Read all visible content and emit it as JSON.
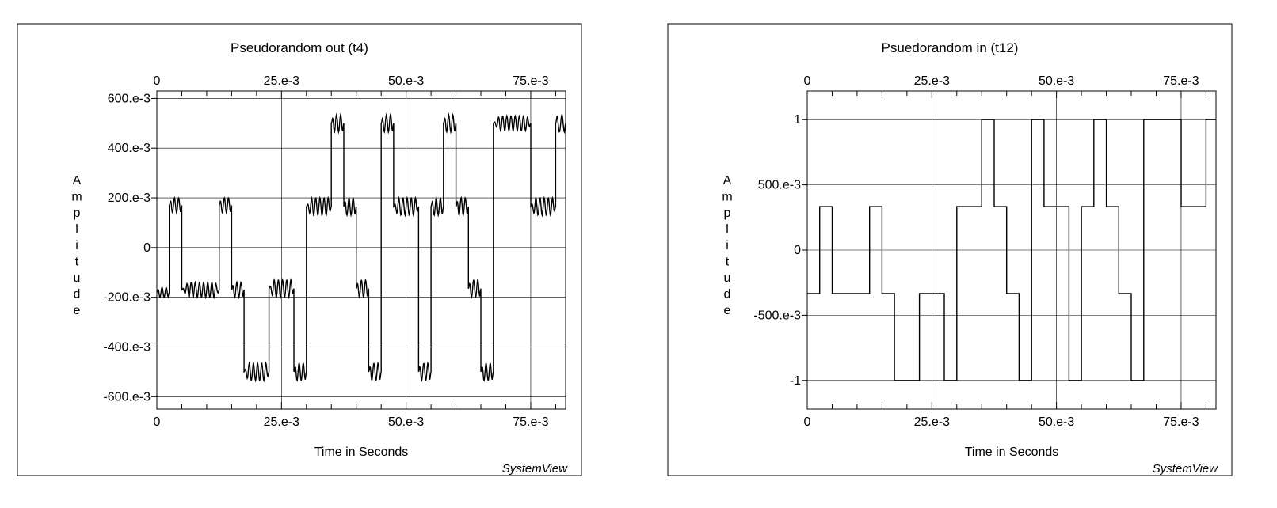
{
  "chart_data": [
    {
      "type": "line",
      "title": "Pseudorandom out (t4)",
      "xlabel": "Time in Seconds",
      "ylabel": "Amplitude",
      "brand": "SystemView",
      "xlim": [
        0,
        0.082
      ],
      "ylim": [
        -0.65,
        0.63
      ],
      "x_ticks": [
        0,
        0.025,
        0.05,
        0.075
      ],
      "x_tick_labels": [
        "0",
        "25.e-3",
        "50.e-3",
        "75.e-3"
      ],
      "y_ticks": [
        0.6,
        0.4,
        0.2,
        0,
        -0.2,
        -0.4,
        -0.6
      ],
      "y_tick_labels": [
        "600.e-3",
        "400.e-3",
        "200.e-3",
        "0",
        "-200.e-3",
        "-400.e-3",
        "-600.e-3"
      ],
      "grid": true,
      "segments": [
        {
          "x0": 0.0,
          "x1": 0.0025,
          "level": -0.18,
          "ripple": 0.02
        },
        {
          "x0": 0.0025,
          "x1": 0.005,
          "level": 0.17,
          "ripple": 0.03
        },
        {
          "x0": 0.005,
          "x1": 0.0125,
          "level": -0.17,
          "ripple": 0.03
        },
        {
          "x0": 0.0125,
          "x1": 0.015,
          "level": 0.17,
          "ripple": 0.03
        },
        {
          "x0": 0.015,
          "x1": 0.0175,
          "level": -0.17,
          "ripple": 0.03
        },
        {
          "x0": 0.0175,
          "x1": 0.0225,
          "level": -0.5,
          "ripple": 0.035
        },
        {
          "x0": 0.0225,
          "x1": 0.0275,
          "level": -0.165,
          "ripple": 0.035
        },
        {
          "x0": 0.0275,
          "x1": 0.03,
          "level": -0.5,
          "ripple": 0.035
        },
        {
          "x0": 0.03,
          "x1": 0.035,
          "level": 0.165,
          "ripple": 0.035
        },
        {
          "x0": 0.035,
          "x1": 0.0375,
          "level": 0.5,
          "ripple": 0.035
        },
        {
          "x0": 0.0375,
          "x1": 0.04,
          "level": 0.165,
          "ripple": 0.035
        },
        {
          "x0": 0.04,
          "x1": 0.0425,
          "level": -0.165,
          "ripple": 0.035
        },
        {
          "x0": 0.0425,
          "x1": 0.045,
          "level": -0.5,
          "ripple": 0.035
        },
        {
          "x0": 0.045,
          "x1": 0.0475,
          "level": 0.5,
          "ripple": 0.035
        },
        {
          "x0": 0.0475,
          "x1": 0.0525,
          "level": 0.165,
          "ripple": 0.035
        },
        {
          "x0": 0.0525,
          "x1": 0.055,
          "level": -0.5,
          "ripple": 0.035
        },
        {
          "x0": 0.055,
          "x1": 0.0575,
          "level": 0.165,
          "ripple": 0.035
        },
        {
          "x0": 0.0575,
          "x1": 0.06,
          "level": 0.5,
          "ripple": 0.035
        },
        {
          "x0": 0.06,
          "x1": 0.0625,
          "level": 0.165,
          "ripple": 0.035
        },
        {
          "x0": 0.0625,
          "x1": 0.065,
          "level": -0.165,
          "ripple": 0.035
        },
        {
          "x0": 0.065,
          "x1": 0.0675,
          "level": -0.5,
          "ripple": 0.035
        },
        {
          "x0": 0.0675,
          "x1": 0.075,
          "level": 0.5,
          "ripple": 0.03
        },
        {
          "x0": 0.075,
          "x1": 0.08,
          "level": 0.165,
          "ripple": 0.035
        },
        {
          "x0": 0.08,
          "x1": 0.082,
          "level": 0.5,
          "ripple": 0.035
        }
      ]
    },
    {
      "type": "line",
      "title": "Psuedorandom in (t12)",
      "xlabel": "Time in Seconds",
      "ylabel": "Amplitude",
      "brand": "SystemView",
      "xlim": [
        0,
        0.082
      ],
      "ylim": [
        -1.22,
        1.22
      ],
      "x_ticks": [
        0,
        0.025,
        0.05,
        0.075
      ],
      "x_tick_labels": [
        "0",
        "25.e-3",
        "50.e-3",
        "75.e-3"
      ],
      "y_ticks": [
        1,
        0.5,
        0,
        -0.5,
        -1
      ],
      "y_tick_labels": [
        "1",
        "500.e-3",
        "0",
        "-500.e-3",
        "-1"
      ],
      "grid": true,
      "segments": [
        {
          "x0": 0.0,
          "x1": 0.0025,
          "level": -0.333
        },
        {
          "x0": 0.0025,
          "x1": 0.005,
          "level": 0.333
        },
        {
          "x0": 0.005,
          "x1": 0.0125,
          "level": -0.333
        },
        {
          "x0": 0.0125,
          "x1": 0.015,
          "level": 0.333
        },
        {
          "x0": 0.015,
          "x1": 0.0175,
          "level": -0.333
        },
        {
          "x0": 0.0175,
          "x1": 0.0225,
          "level": -1
        },
        {
          "x0": 0.0225,
          "x1": 0.0275,
          "level": -0.333
        },
        {
          "x0": 0.0275,
          "x1": 0.03,
          "level": -1
        },
        {
          "x0": 0.03,
          "x1": 0.035,
          "level": 0.333
        },
        {
          "x0": 0.035,
          "x1": 0.0375,
          "level": 1
        },
        {
          "x0": 0.0375,
          "x1": 0.04,
          "level": 0.333
        },
        {
          "x0": 0.04,
          "x1": 0.0425,
          "level": -0.333
        },
        {
          "x0": 0.0425,
          "x1": 0.045,
          "level": -1
        },
        {
          "x0": 0.045,
          "x1": 0.0475,
          "level": 1
        },
        {
          "x0": 0.0475,
          "x1": 0.0525,
          "level": 0.333
        },
        {
          "x0": 0.0525,
          "x1": 0.055,
          "level": -1
        },
        {
          "x0": 0.055,
          "x1": 0.0575,
          "level": 0.333
        },
        {
          "x0": 0.0575,
          "x1": 0.06,
          "level": 1
        },
        {
          "x0": 0.06,
          "x1": 0.0625,
          "level": 0.333
        },
        {
          "x0": 0.0625,
          "x1": 0.065,
          "level": -0.333
        },
        {
          "x0": 0.065,
          "x1": 0.0675,
          "level": -1
        },
        {
          "x0": 0.0675,
          "x1": 0.075,
          "level": 1
        },
        {
          "x0": 0.075,
          "x1": 0.08,
          "level": 0.333
        },
        {
          "x0": 0.08,
          "x1": 0.082,
          "level": 1
        }
      ]
    }
  ]
}
